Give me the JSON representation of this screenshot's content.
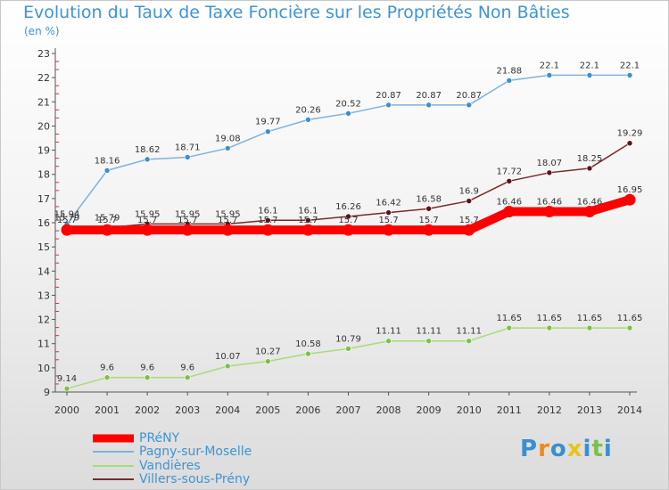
{
  "chart_data": {
    "type": "line",
    "title": "Evolution du Taux de Taxe Foncière sur les Propriétés Non Bâties",
    "ylabel": "(en %)",
    "xlabel": "",
    "ylim": [
      9,
      23
    ],
    "yticks": [
      "9",
      "10",
      "11",
      "12",
      "13",
      "14",
      "15",
      "16",
      "17",
      "18",
      "19",
      "20",
      "21",
      "22",
      "23"
    ],
    "categories": [
      "2000",
      "2001",
      "2002",
      "2003",
      "2004",
      "2005",
      "2006",
      "2007",
      "2008",
      "2009",
      "2010",
      "2011",
      "2012",
      "2013",
      "2014"
    ],
    "series": [
      {
        "name": "Pagny-sur-Moselle",
        "color": "#7fb2e0",
        "marker": "#3a8fd0",
        "values": [
          15.94,
          18.16,
          18.62,
          18.71,
          19.08,
          19.77,
          20.26,
          20.52,
          20.87,
          20.87,
          20.87,
          21.88,
          22.1,
          22.1,
          22.1
        ],
        "labels": [
          "15.94",
          "18.16",
          "18.62",
          "18.71",
          "19.08",
          "19.77",
          "20.26",
          "20.52",
          "20.87",
          "20.87",
          "20.87",
          "21.88",
          "22.1",
          "22.1",
          "22.1"
        ]
      },
      {
        "name": "Villers-sous-Prény",
        "color": "#7a2a2a",
        "marker": "#5a1414",
        "values": [
          15.79,
          15.79,
          15.95,
          15.95,
          15.95,
          16.1,
          16.1,
          16.26,
          16.42,
          16.58,
          16.9,
          17.72,
          18.07,
          18.25,
          19.29
        ],
        "labels": [
          "15.79",
          "15.79",
          "15.95",
          "15.95",
          "15.95",
          "16.1",
          "16.1",
          "16.26",
          "16.42",
          "16.58",
          "16.9",
          "17.72",
          "18.07",
          "18.25",
          "19.29"
        ]
      },
      {
        "name": "Vandières",
        "color": "#a6dd78",
        "marker": "#7cc04a",
        "values": [
          9.14,
          9.6,
          9.6,
          9.6,
          10.07,
          10.27,
          10.58,
          10.79,
          11.11,
          11.11,
          11.11,
          11.65,
          11.65,
          11.65,
          11.65
        ],
        "labels": [
          "9.14",
          "9.6",
          "9.6",
          "9.6",
          "10.07",
          "10.27",
          "10.58",
          "10.79",
          "11.11",
          "11.11",
          "11.11",
          "11.65",
          "11.65",
          "11.65",
          "11.65"
        ]
      },
      {
        "name": "PRéNY",
        "color": "#ff0000",
        "marker": "#ff0000",
        "thick": true,
        "values": [
          15.7,
          15.7,
          15.7,
          15.7,
          15.7,
          15.7,
          15.7,
          15.7,
          15.7,
          15.7,
          15.7,
          16.46,
          16.46,
          16.46,
          16.95
        ],
        "labels": [
          "15.7",
          "15.7",
          "15.7",
          "15.7",
          "15.7",
          "15.7",
          "15.7",
          "15.7",
          "15.7",
          "15.7",
          "15.7",
          "16.46",
          "16.46",
          "16.46",
          "16.95"
        ]
      }
    ],
    "legend": [
      "PRéNY",
      "Pagny-sur-Moselle",
      "Vandières",
      "Villers-sous-Prény"
    ],
    "legend_position": "bottom-left",
    "grid": false
  },
  "logo": {
    "letters": [
      "P",
      "r",
      "o",
      "x",
      "i",
      "t",
      "i"
    ],
    "colors": [
      "#3a8fd0",
      "#f08a1c",
      "#3a8fd0",
      "#e8c41c",
      "#3a8fd0",
      "#7cc04a",
      "#3a8fd0"
    ]
  }
}
